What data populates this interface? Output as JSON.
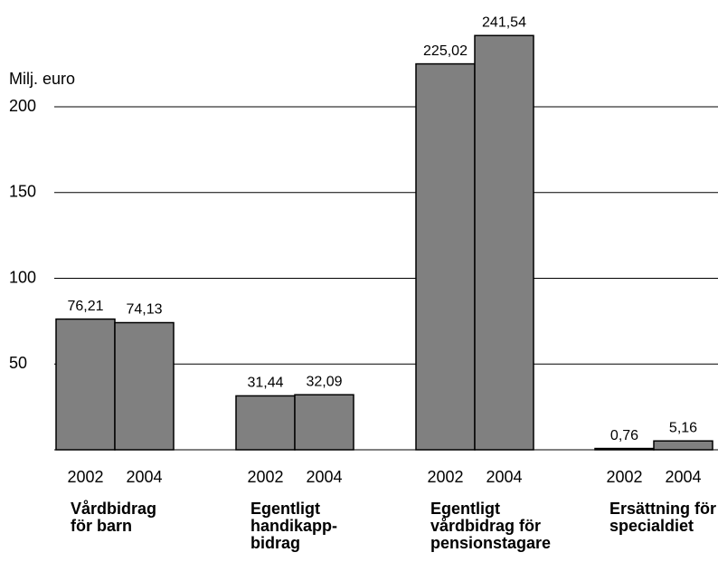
{
  "chart_data": {
    "type": "bar",
    "y_label": "Milj. euro",
    "categories": [
      [
        "Vårdbidrag",
        "för barn"
      ],
      [
        "Egentligt",
        "handikapp-",
        "bidrag"
      ],
      [
        "Egentligt",
        "vårdbidrag för",
        "pensionstagare"
      ],
      [
        "Ersättning för",
        "specialdiet"
      ]
    ],
    "series": [
      {
        "name": "2002",
        "color": "#808080",
        "values": [
          76.21,
          31.44,
          225.02,
          0.76
        ],
        "value_labels": [
          "76,21",
          "31,44",
          "225,02",
          "0,76"
        ]
      },
      {
        "name": "2004",
        "color": "#808080",
        "values": [
          74.13,
          32.09,
          241.54,
          5.16
        ],
        "value_labels": [
          "74,13",
          "32,09",
          "241,54",
          "5,16"
        ]
      }
    ],
    "ylim": [
      0,
      260
    ],
    "yticks": [
      50,
      100,
      150,
      200
    ],
    "grid": true
  }
}
